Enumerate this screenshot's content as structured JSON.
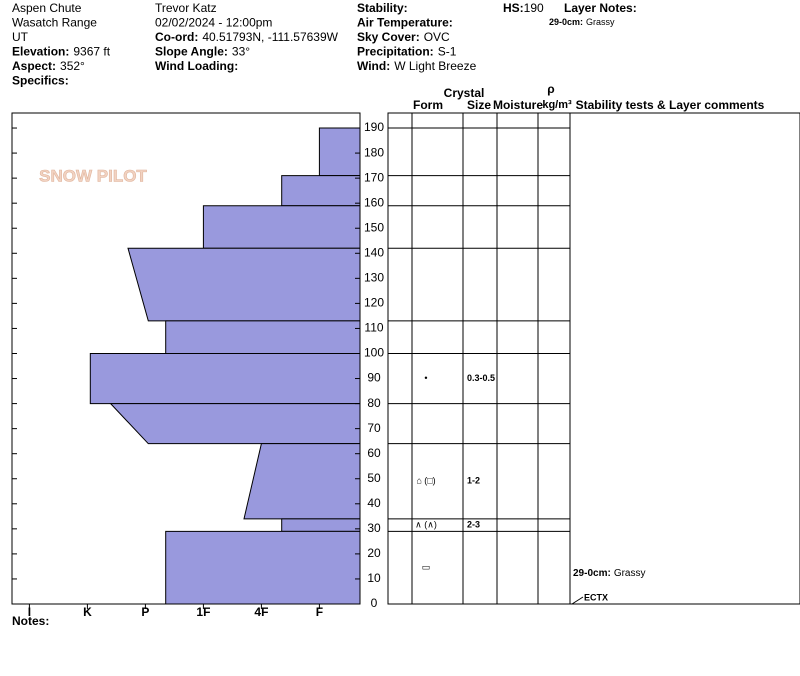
{
  "header": {
    "columns": [
      [
        {
          "value": "Aspen Chute"
        },
        {
          "value": "Wasatch Range"
        },
        {
          "value": "UT"
        },
        {
          "label": "Elevation:",
          "value": "9367 ft"
        },
        {
          "label": "Aspect:",
          "value": "352°"
        },
        {
          "label": "Specifics:"
        }
      ],
      [
        {
          "value": "Trevor Katz"
        },
        {
          "value": "02/02/2024 - 12:00pm"
        },
        {
          "label": "Co-ord:",
          "value": "40.51793N, -111.57639W"
        },
        {
          "label": "Slope Angle:",
          "value": "33°"
        },
        {
          "label": "Wind Loading:"
        }
      ],
      [
        {
          "label": "Stability:"
        },
        {
          "label": "Air Temperature:"
        },
        {
          "label": "Sky Cover:",
          "value": "OVC"
        },
        {
          "label": "Precipitation:",
          "value": "S-1"
        },
        {
          "label": "Wind:",
          "value": "W Light Breeze"
        }
      ]
    ],
    "hs_label": "HS:",
    "hs_value": "190",
    "layer_notes_title": "Layer Notes:",
    "layer_notes": [
      {
        "range": "29-0cm:",
        "text": "Grassy"
      }
    ]
  },
  "logo": "SNOW PILOT",
  "table_headers": {
    "crystal": "Crystal",
    "form": "Form",
    "size": "Size",
    "moisture": "Moisture",
    "rho": "ρ",
    "density_unit": "kg/m³",
    "comments": "Stability tests & Layer comments"
  },
  "profile": {
    "depth_lim": [
      0,
      196
    ],
    "depth_ticks": [
      0,
      10,
      20,
      30,
      40,
      50,
      60,
      70,
      80,
      90,
      100,
      110,
      120,
      130,
      140,
      150,
      160,
      170,
      180,
      190
    ],
    "hardness_lim": [
      0.3,
      6.3
    ],
    "hardness_ticks": [
      {
        "value": 6,
        "label": "I"
      },
      {
        "value": 5,
        "label": "K"
      },
      {
        "value": 4,
        "label": "P"
      },
      {
        "value": 3,
        "label": "1F"
      },
      {
        "value": 2,
        "label": "4F"
      },
      {
        "value": 1,
        "label": "F"
      }
    ],
    "color": "#9999dd",
    "layers": [
      {
        "top": 190,
        "bottom": 171,
        "hardness_top": 1,
        "hardness_bottom": 1
      },
      {
        "top": 171,
        "bottom": 159,
        "hardness_top": 1.65,
        "hardness_bottom": 1.65
      },
      {
        "top": 159,
        "bottom": 142,
        "hardness_top": 3,
        "hardness_bottom": 3
      },
      {
        "top": 142,
        "bottom": 113,
        "hardness_top": 4.3,
        "hardness_bottom": 3.95
      },
      {
        "top": 113,
        "bottom": 100,
        "hardness_top": 3.65,
        "hardness_bottom": 3.65
      },
      {
        "top": 100,
        "bottom": 80,
        "hardness_top": 4.95,
        "hardness_bottom": 4.95,
        "form": "•",
        "size": "0.3-0.5"
      },
      {
        "top": 80,
        "bottom": 64,
        "hardness_top": 4.6,
        "hardness_bottom": 3.95
      },
      {
        "top": 64,
        "bottom": 34,
        "hardness_top": 2,
        "hardness_bottom": 2.3,
        "form": "⌂ (□)",
        "size": "1-2"
      },
      {
        "top": 34,
        "bottom": 29,
        "hardness_top": 1.65,
        "hardness_bottom": 1.65,
        "form": "∧ (∧)",
        "size": "2-3"
      },
      {
        "top": 29,
        "bottom": 0,
        "hardness_top": 3.65,
        "hardness_bottom": 3.65,
        "form": "▭"
      }
    ]
  },
  "layer_comments": [
    {
      "range": "29-0cm:",
      "text": "Grassy"
    }
  ],
  "tests": [
    {
      "depth": 0,
      "result": "ECTX"
    }
  ],
  "notes": "Notes:"
}
